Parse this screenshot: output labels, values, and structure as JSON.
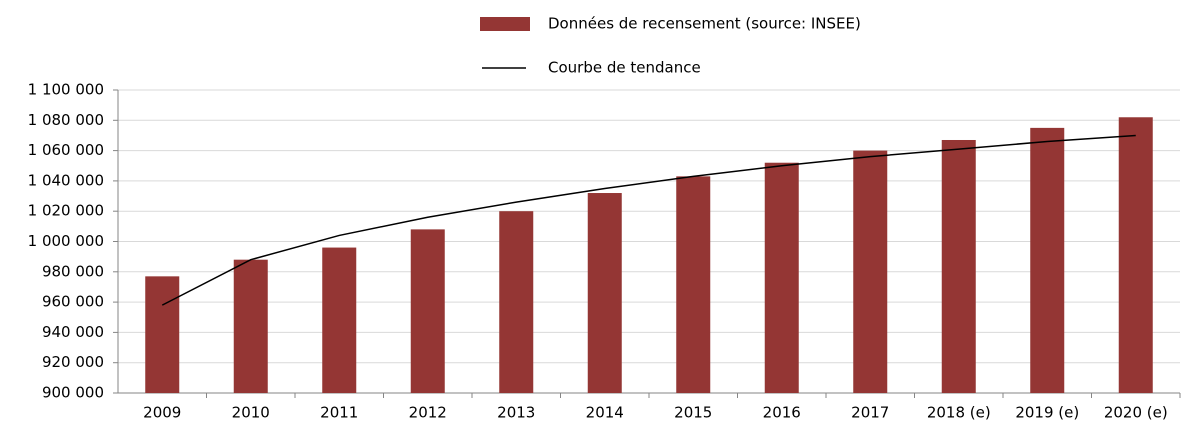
{
  "chart_data": {
    "type": "bar",
    "categories": [
      "2009",
      "2010",
      "2011",
      "2012",
      "2013",
      "2014",
      "2015",
      "2016",
      "2017",
      "2018 (e)",
      "2019 (e)",
      "2020 (e)"
    ],
    "series": [
      {
        "name": "Données de recensement (source: INSEE)",
        "color": "#943634",
        "type": "bar",
        "values": [
          977000,
          988000,
          996000,
          1008000,
          1020000,
          1032000,
          1043000,
          1052000,
          1060000,
          1067000,
          1075000,
          1082000
        ]
      },
      {
        "name": "Courbe de tendance",
        "color": "#000000",
        "type": "line",
        "values": [
          958000,
          988000,
          1004000,
          1016000,
          1026000,
          1035000,
          1043000,
          1050000,
          1056000,
          1061000,
          1066000,
          1070000
        ]
      }
    ],
    "ylim": [
      900000,
      1100000
    ],
    "yticks": [
      {
        "value": 900000,
        "label": "900 000"
      },
      {
        "value": 920000,
        "label": "920 000"
      },
      {
        "value": 940000,
        "label": "940 000"
      },
      {
        "value": 960000,
        "label": "960 000"
      },
      {
        "value": 980000,
        "label": "980 000"
      },
      {
        "value": 1000000,
        "label": "1 000 000"
      },
      {
        "value": 1020000,
        "label": "1 020 000"
      },
      {
        "value": 1040000,
        "label": "1 040 000"
      },
      {
        "value": 1060000,
        "label": "1 060 000"
      },
      {
        "value": 1080000,
        "label": "1 080 000"
      },
      {
        "value": 1100000,
        "label": "1 100 000"
      }
    ],
    "grid": true,
    "legend": "top"
  }
}
